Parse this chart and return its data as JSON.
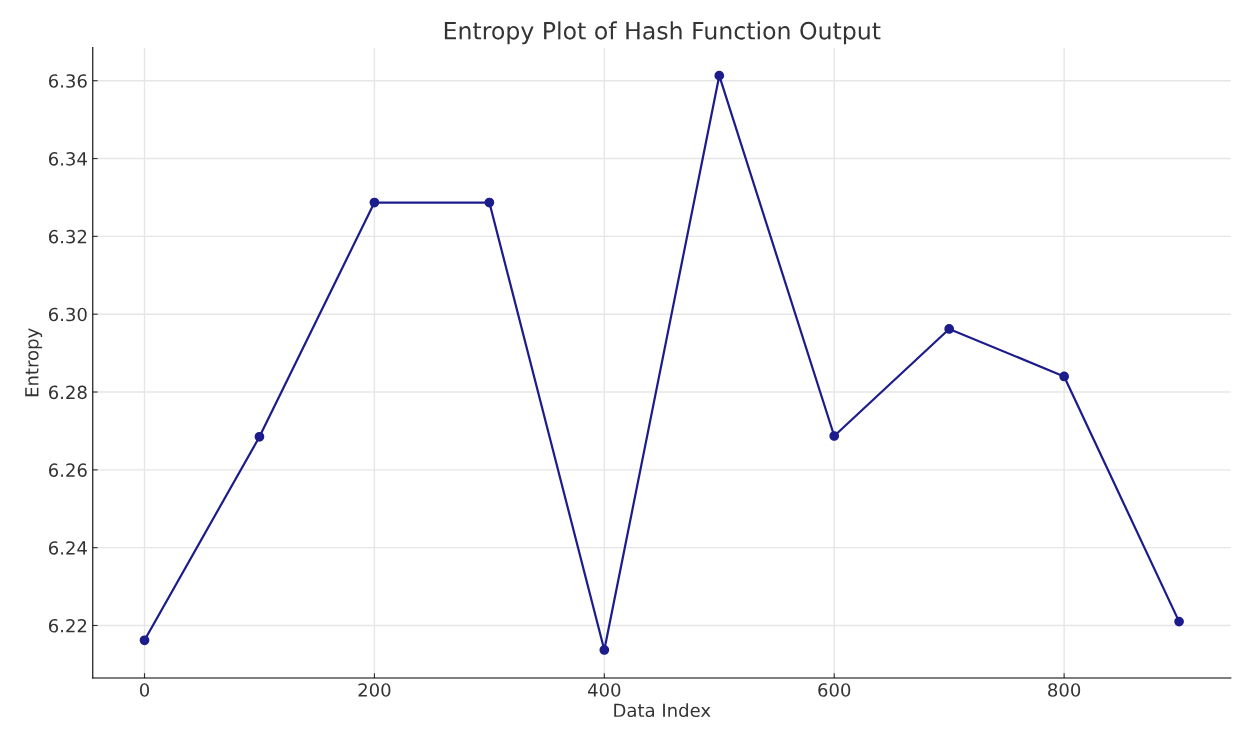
{
  "chart_data": {
    "type": "line",
    "title": "Entropy Plot of Hash Function Output",
    "xlabel": "Data Index",
    "ylabel": "Entropy",
    "x": [
      0,
      100,
      200,
      300,
      400,
      500,
      600,
      700,
      800,
      900
    ],
    "series": [
      {
        "color": "#1c1c8c",
        "values": [
          6.2162,
          6.2685,
          6.3287,
          6.3287,
          6.2137,
          6.3613,
          6.2687,
          6.2962,
          6.284,
          6.221
        ]
      }
    ],
    "xlim": [
      -45,
      945
    ],
    "xticks": [
      0,
      200,
      400,
      600,
      800
    ],
    "ylim": [
      6.2065,
      6.3685
    ],
    "yticks": [
      6.22,
      6.24,
      6.26,
      6.28,
      {
        "value": 6.3,
        "label": "6.30"
      },
      6.32,
      6.34,
      6.36
    ],
    "grid": true,
    "marker": "circle",
    "line_style": "solid"
  }
}
